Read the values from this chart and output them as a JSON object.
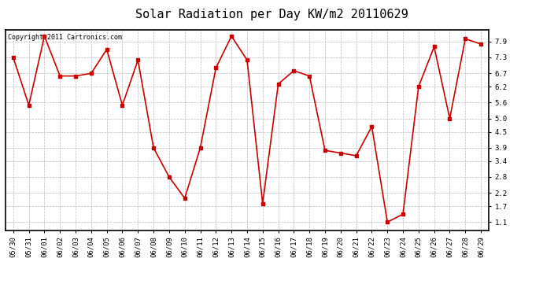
{
  "title": "Solar Radiation per Day KW/m2 20110629",
  "copyright_text": "Copyright 2011 Cartronics.com",
  "dates": [
    "05/30",
    "05/31",
    "06/01",
    "06/02",
    "06/03",
    "06/04",
    "06/05",
    "06/06",
    "06/07",
    "06/08",
    "06/09",
    "06/10",
    "06/11",
    "06/12",
    "06/13",
    "06/14",
    "06/15",
    "06/16",
    "06/17",
    "06/18",
    "06/19",
    "06/20",
    "06/21",
    "06/22",
    "06/23",
    "06/24",
    "06/25",
    "06/26",
    "06/27",
    "06/28",
    "06/29"
  ],
  "values": [
    7.3,
    5.5,
    8.1,
    6.6,
    6.6,
    6.7,
    7.6,
    5.5,
    7.2,
    3.9,
    2.8,
    2.0,
    3.9,
    6.9,
    8.1,
    7.2,
    1.8,
    6.3,
    6.8,
    6.6,
    3.8,
    3.7,
    3.6,
    4.7,
    1.1,
    1.4,
    6.2,
    7.7,
    5.0,
    8.0,
    7.8
  ],
  "line_color": "#cc0000",
  "background_color": "#ffffff",
  "plot_bg_color": "#ffffff",
  "grid_color": "#bbbbbb",
  "yticks": [
    1.1,
    1.7,
    2.2,
    2.8,
    3.4,
    3.9,
    4.5,
    5.0,
    5.6,
    6.2,
    6.7,
    7.3,
    7.9
  ],
  "ylim": [
    0.8,
    8.35
  ],
  "title_fontsize": 11,
  "copyright_fontsize": 6,
  "tick_fontsize": 6.5
}
